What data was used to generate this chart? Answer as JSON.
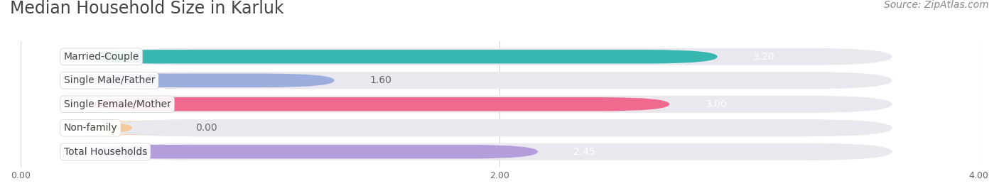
{
  "title": "Median Household Size in Karluk",
  "source": "Source: ZipAtlas.com",
  "categories": [
    "Married-Couple",
    "Single Male/Father",
    "Single Female/Mother",
    "Non-family",
    "Total Households"
  ],
  "values": [
    3.2,
    1.6,
    3.0,
    0.0,
    2.45
  ],
  "bar_colors": [
    "#38b6b0",
    "#9baede",
    "#f06a8f",
    "#f5c99a",
    "#b39ddb"
  ],
  "bar_bg_color": "#e8e8ee",
  "value_colors": [
    "#ffffff",
    "#666666",
    "#ffffff",
    "#666666",
    "#ffffff"
  ],
  "xlim": [
    0,
    4.0
  ],
  "xticks": [
    0.0,
    2.0,
    4.0
  ],
  "title_fontsize": 17,
  "source_fontsize": 10,
  "bar_label_fontsize": 10,
  "category_fontsize": 10,
  "background_color": "#ffffff"
}
